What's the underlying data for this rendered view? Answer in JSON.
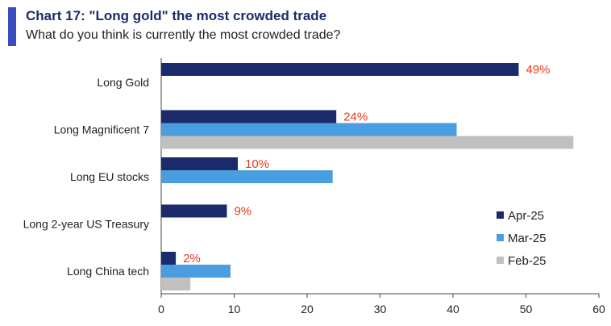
{
  "header": {
    "title": "Chart 17: \"Long gold\" the most crowded trade",
    "subtitle": "What do you think is currently the most crowded trade?"
  },
  "chart_data": {
    "type": "bar",
    "orientation": "horizontal",
    "title": "Chart 17: \"Long gold\" the most crowded trade",
    "subtitle": "What do you think is currently the most crowded trade?",
    "categories": [
      "Long Gold",
      "Long Magnificent 7",
      "Long EU stocks",
      "Long 2-year US Treasury",
      "Long China tech"
    ],
    "series": [
      {
        "name": "Apr-25",
        "color": "#1b2a6b",
        "values": [
          49,
          24,
          10.5,
          9,
          2
        ]
      },
      {
        "name": "Mar-25",
        "color": "#4a9ee0",
        "values": [
          0,
          40.5,
          23.5,
          0,
          9.5
        ]
      },
      {
        "name": "Feb-25",
        "color": "#c0c0c0",
        "values": [
          0,
          56.5,
          0,
          0,
          4
        ]
      }
    ],
    "data_labels": [
      "49%",
      "24%",
      "10%",
      "9%",
      "2%"
    ],
    "data_label_color": "#e8391d",
    "xlim": [
      0,
      60
    ],
    "xticks": [
      0,
      10,
      20,
      30,
      40,
      50,
      60
    ],
    "xlabel": "",
    "ylabel": "",
    "legend_position": "bottom-right",
    "grid": false
  }
}
